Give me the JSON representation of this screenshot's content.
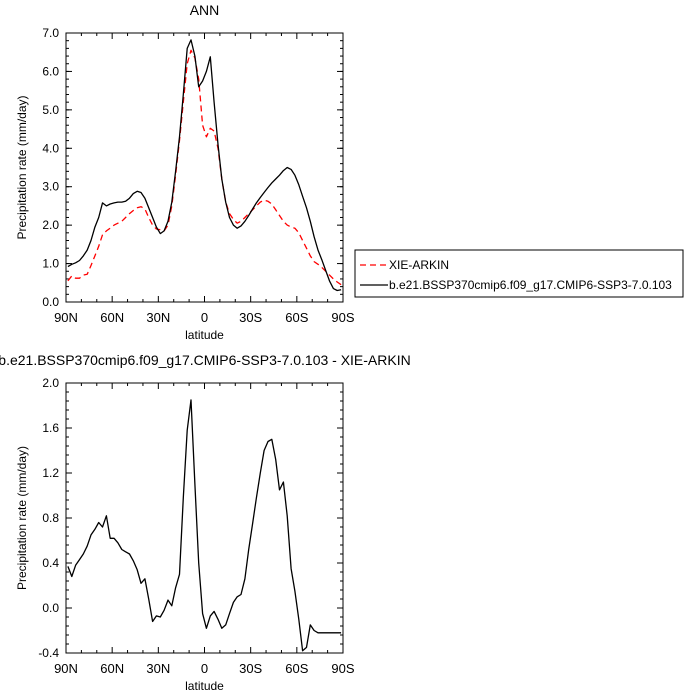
{
  "chart_data": [
    {
      "type": "line",
      "title": "ANN",
      "xlabel": "latitude",
      "ylabel": "Precipitation rate (mm/day)",
      "xlim": [
        90,
        -90
      ],
      "ylim": [
        0,
        7
      ],
      "xticks": [
        90,
        60,
        30,
        0,
        -30,
        -60,
        -90
      ],
      "xtick_labels": [
        "90N",
        "60N",
        "30N",
        "0",
        "30S",
        "60S",
        "90S"
      ],
      "yticks": [
        0,
        1,
        2,
        3,
        4,
        5,
        6,
        7
      ],
      "ytick_labels": [
        "0.0",
        "1.0",
        "2.0",
        "3.0",
        "4.0",
        "5.0",
        "6.0",
        "7.0"
      ],
      "grid": false,
      "legend_position": "right",
      "series": [
        {
          "name": "XIE-ARKIN",
          "color": "#ff0000",
          "dash": "dashed",
          "x": [
            88.75,
            86.25,
            83.75,
            81.25,
            78.75,
            76.25,
            73.75,
            71.25,
            68.75,
            66.25,
            63.75,
            61.25,
            58.75,
            56.25,
            53.75,
            51.25,
            48.75,
            46.25,
            43.75,
            41.25,
            38.75,
            36.25,
            33.75,
            31.25,
            28.75,
            26.25,
            23.75,
            21.25,
            18.75,
            16.25,
            13.75,
            11.25,
            8.75,
            6.25,
            3.75,
            1.25,
            -1.25,
            -3.75,
            -6.25,
            -8.75,
            -11.25,
            -13.75,
            -16.25,
            -18.75,
            -21.25,
            -23.75,
            -26.25,
            -28.75,
            -31.25,
            -33.75,
            -36.25,
            -38.75,
            -41.25,
            -43.75,
            -46.25,
            -48.75,
            -51.25,
            -53.75,
            -56.25,
            -58.75,
            -61.25,
            -63.75,
            -66.25,
            -68.75,
            -71.25,
            -73.75,
            -76.25,
            -78.75,
            -81.25,
            -83.75,
            -86.25,
            -88.75
          ],
          "y": [
            0.55,
            0.68,
            0.62,
            0.62,
            0.7,
            0.72,
            0.95,
            1.2,
            1.45,
            1.75,
            1.85,
            1.92,
            2.0,
            2.05,
            2.1,
            2.2,
            2.3,
            2.38,
            2.45,
            2.48,
            2.42,
            2.2,
            2.0,
            1.9,
            1.88,
            1.85,
            2.0,
            2.5,
            3.3,
            4.2,
            5.2,
            6.2,
            6.55,
            6.35,
            5.8,
            4.6,
            4.3,
            4.52,
            4.45,
            4.0,
            3.2,
            2.6,
            2.3,
            2.15,
            2.05,
            2.1,
            2.2,
            2.3,
            2.4,
            2.5,
            2.6,
            2.65,
            2.62,
            2.55,
            2.4,
            2.25,
            2.1,
            2.0,
            1.95,
            1.92,
            1.8,
            1.6,
            1.4,
            1.2,
            1.05,
            0.98,
            0.9,
            0.8,
            0.7,
            0.6,
            0.52,
            0.45
          ]
        },
        {
          "name": "b.e21.BSSP370cmip6.f09_g17.CMIP6-SSP3-7.0.103",
          "color": "#000000",
          "dash": "solid",
          "x": [
            88.75,
            86.25,
            83.75,
            81.25,
            78.75,
            76.25,
            73.75,
            71.25,
            68.75,
            66.25,
            63.75,
            61.25,
            58.75,
            56.25,
            53.75,
            51.25,
            48.75,
            46.25,
            43.75,
            41.25,
            38.75,
            36.25,
            33.75,
            31.25,
            28.75,
            26.25,
            23.75,
            21.25,
            18.75,
            16.25,
            13.75,
            11.25,
            8.75,
            6.25,
            3.75,
            1.25,
            -1.25,
            -3.75,
            -6.25,
            -8.75,
            -11.25,
            -13.75,
            -16.25,
            -18.75,
            -21.25,
            -23.75,
            -26.25,
            -28.75,
            -31.25,
            -33.75,
            -36.25,
            -38.75,
            -41.25,
            -43.75,
            -46.25,
            -48.75,
            -51.25,
            -53.75,
            -56.25,
            -58.75,
            -61.25,
            -63.75,
            -66.25,
            -68.75,
            -71.25,
            -73.75,
            -76.25,
            -78.75,
            -81.25,
            -83.75,
            -86.25,
            -88.75
          ],
          "y": [
            0.92,
            0.98,
            1.02,
            1.08,
            1.2,
            1.35,
            1.6,
            1.95,
            2.2,
            2.58,
            2.5,
            2.55,
            2.58,
            2.6,
            2.6,
            2.62,
            2.7,
            2.82,
            2.88,
            2.85,
            2.7,
            2.45,
            2.2,
            1.95,
            1.78,
            1.85,
            2.1,
            2.6,
            3.4,
            4.3,
            5.4,
            6.6,
            6.82,
            6.4,
            5.6,
            5.75,
            6.0,
            6.38,
            5.2,
            4.1,
            3.2,
            2.6,
            2.2,
            2.0,
            1.92,
            1.98,
            2.1,
            2.25,
            2.42,
            2.58,
            2.72,
            2.85,
            2.98,
            3.1,
            3.2,
            3.3,
            3.42,
            3.5,
            3.45,
            3.3,
            3.05,
            2.75,
            2.45,
            2.1,
            1.7,
            1.35,
            1.1,
            0.82,
            0.55,
            0.35,
            0.3,
            0.32
          ]
        }
      ]
    },
    {
      "type": "line",
      "title": "b.e21.BSSP370cmip6.f09_g17.CMIP6-SSP3-7.0.103 - XIE-ARKIN",
      "xlabel": "latitude",
      "ylabel": "Precipitation rate (mm/day)",
      "xlim": [
        90,
        -90
      ],
      "ylim": [
        -0.4,
        2.0
      ],
      "xticks": [
        90,
        60,
        30,
        0,
        -30,
        -60,
        -90
      ],
      "xtick_labels": [
        "90N",
        "60N",
        "30N",
        "0",
        "30S",
        "60S",
        "90S"
      ],
      "yticks": [
        -0.4,
        0.0,
        0.4,
        0.8,
        1.2,
        1.6,
        2.0
      ],
      "ytick_labels": [
        "-0.4",
        "0.0",
        "0.4",
        "0.8",
        "1.2",
        "1.6",
        "2.0"
      ],
      "grid": false,
      "series": [
        {
          "name": "",
          "color": "#000000",
          "dash": "solid",
          "x": [
            88.75,
            86.25,
            83.75,
            81.25,
            78.75,
            76.25,
            73.75,
            71.25,
            68.75,
            66.25,
            63.75,
            61.25,
            58.75,
            56.25,
            53.75,
            51.25,
            48.75,
            46.25,
            43.75,
            41.25,
            38.75,
            36.25,
            33.75,
            31.25,
            28.75,
            26.25,
            23.75,
            21.25,
            18.75,
            16.25,
            13.75,
            11.25,
            8.75,
            6.25,
            3.75,
            1.25,
            -1.25,
            -3.75,
            -6.25,
            -8.75,
            -11.25,
            -13.75,
            -16.25,
            -18.75,
            -21.25,
            -23.75,
            -26.25,
            -28.75,
            -31.25,
            -33.75,
            -36.25,
            -38.75,
            -41.25,
            -43.75,
            -46.25,
            -48.75,
            -51.25,
            -53.75,
            -56.25,
            -58.75,
            -61.25,
            -63.75,
            -66.25,
            -68.75,
            -71.25,
            -73.75,
            -76.25,
            -78.75,
            -81.25,
            -83.75,
            -86.25,
            -88.75
          ],
          "y": [
            0.37,
            0.28,
            0.38,
            0.43,
            0.48,
            0.55,
            0.65,
            0.7,
            0.76,
            0.72,
            0.82,
            0.62,
            0.62,
            0.58,
            0.52,
            0.5,
            0.48,
            0.42,
            0.34,
            0.22,
            0.26,
            0.08,
            -0.12,
            -0.07,
            -0.08,
            -0.02,
            0.07,
            0.02,
            0.18,
            0.3,
            0.98,
            1.58,
            1.85,
            1.1,
            0.4,
            -0.05,
            -0.18,
            -0.07,
            -0.03,
            -0.1,
            -0.18,
            -0.15,
            -0.05,
            0.05,
            0.1,
            0.12,
            0.26,
            0.52,
            0.75,
            0.98,
            1.2,
            1.4,
            1.48,
            1.5,
            1.32,
            1.05,
            1.12,
            0.82,
            0.35,
            0.15,
            -0.1,
            -0.38,
            -0.35,
            -0.15,
            -0.2,
            -0.22,
            -0.22,
            -0.22,
            -0.22,
            -0.22,
            -0.22,
            -0.22
          ]
        }
      ]
    }
  ]
}
